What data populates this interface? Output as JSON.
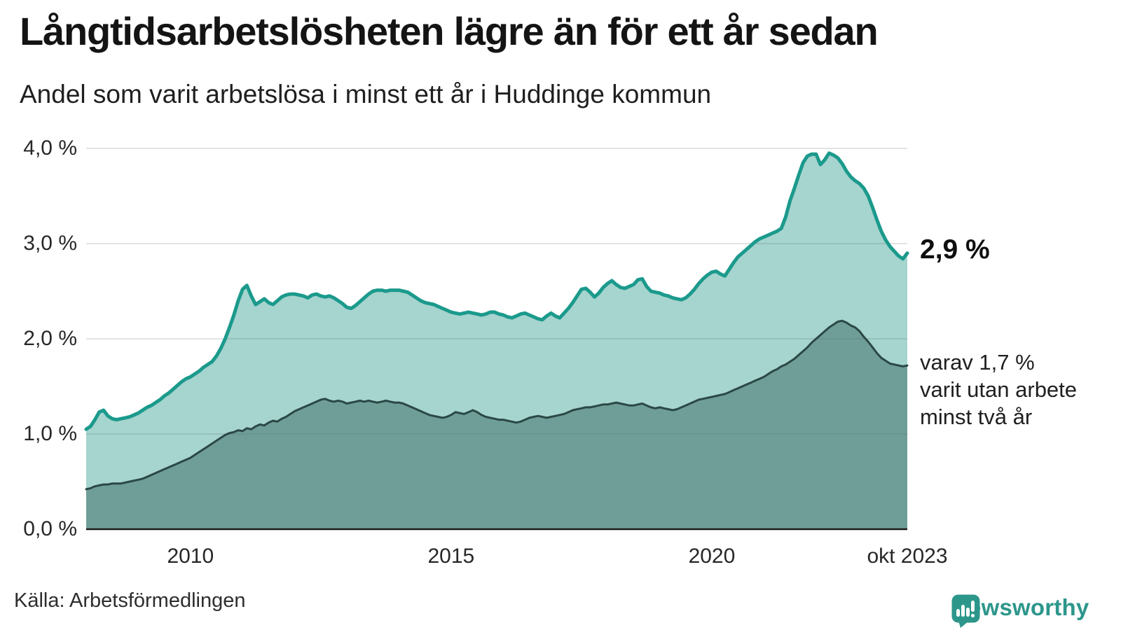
{
  "title": "Långtidsarbetslösheten lägre än för ett år sedan",
  "subtitle": "Andel som varit arbetslösa i minst ett år i Huddinge kommun",
  "source": "Källa: Arbetsförmedlingen",
  "branding": {
    "name": "Newsworthy"
  },
  "annotations": {
    "latest_total": "2,9 %",
    "secondary": [
      "varav 1,7 %",
      "varit utan arbete",
      "minst två år"
    ]
  },
  "colors": {
    "accent_teal": "#1b9a8c",
    "light_fill": "#a6d4ce",
    "dark_fill": "#6f9e98",
    "dark_line": "#2b4845",
    "axis": "#1b1b1b",
    "grid_overlay": "rgba(75,95,100,0.17)",
    "logo_teal": "#2d968b",
    "text_dark": "#141414"
  },
  "chart_data": {
    "type": "area",
    "unit": "%",
    "x_start": "2008-01",
    "x_end": "2023-10",
    "y_max": 4,
    "ylim": [
      0,
      4
    ],
    "grid": true,
    "y_ticks": [
      {
        "label": "0,0 %",
        "value": 0
      },
      {
        "label": "1,0 %",
        "value": 1
      },
      {
        "label": "2,0 %",
        "value": 2
      },
      {
        "label": "3,0 %",
        "value": 3
      },
      {
        "label": "4,0 %",
        "value": 4
      }
    ],
    "x_ticks": [
      {
        "label": "2010",
        "month_index": 24
      },
      {
        "label": "2015",
        "month_index": 84
      },
      {
        "label": "2020",
        "month_index": 144
      },
      {
        "label": "okt 2023",
        "month_index": 189
      }
    ],
    "series": [
      {
        "name": "Arbetslösa minst ett år",
        "latest_value": 2.9,
        "color": "#1b9a8c",
        "fill": "#a6d4ce",
        "values": [
          1.05,
          1.08,
          1.15,
          1.23,
          1.25,
          1.19,
          1.16,
          1.15,
          1.16,
          1.17,
          1.18,
          1.2,
          1.22,
          1.25,
          1.28,
          1.3,
          1.33,
          1.36,
          1.4,
          1.43,
          1.47,
          1.51,
          1.55,
          1.58,
          1.6,
          1.63,
          1.66,
          1.7,
          1.73,
          1.76,
          1.82,
          1.9,
          2.0,
          2.12,
          2.25,
          2.4,
          2.52,
          2.56,
          2.45,
          2.36,
          2.39,
          2.42,
          2.38,
          2.36,
          2.4,
          2.44,
          2.46,
          2.47,
          2.47,
          2.46,
          2.45,
          2.43,
          2.46,
          2.47,
          2.45,
          2.44,
          2.45,
          2.43,
          2.4,
          2.37,
          2.33,
          2.32,
          2.35,
          2.39,
          2.43,
          2.47,
          2.5,
          2.51,
          2.51,
          2.5,
          2.51,
          2.51,
          2.51,
          2.5,
          2.49,
          2.46,
          2.43,
          2.4,
          2.38,
          2.37,
          2.36,
          2.34,
          2.32,
          2.3,
          2.28,
          2.27,
          2.26,
          2.27,
          2.28,
          2.27,
          2.26,
          2.25,
          2.26,
          2.28,
          2.28,
          2.26,
          2.25,
          2.23,
          2.22,
          2.24,
          2.26,
          2.27,
          2.25,
          2.23,
          2.21,
          2.2,
          2.24,
          2.27,
          2.24,
          2.22,
          2.27,
          2.32,
          2.38,
          2.45,
          2.52,
          2.53,
          2.49,
          2.44,
          2.48,
          2.54,
          2.58,
          2.61,
          2.57,
          2.54,
          2.53,
          2.55,
          2.57,
          2.62,
          2.63,
          2.55,
          2.5,
          2.49,
          2.48,
          2.46,
          2.45,
          2.43,
          2.42,
          2.41,
          2.43,
          2.47,
          2.52,
          2.58,
          2.63,
          2.67,
          2.7,
          2.71,
          2.68,
          2.66,
          2.73,
          2.8,
          2.86,
          2.9,
          2.94,
          2.98,
          3.02,
          3.05,
          3.07,
          3.09,
          3.11,
          3.13,
          3.16,
          3.28,
          3.45,
          3.58,
          3.72,
          3.85,
          3.92,
          3.94,
          3.94,
          3.83,
          3.88,
          3.95,
          3.93,
          3.9,
          3.84,
          3.76,
          3.7,
          3.66,
          3.63,
          3.58,
          3.5,
          3.38,
          3.25,
          3.13,
          3.04,
          2.97,
          2.92,
          2.87,
          2.84,
          2.9
        ]
      },
      {
        "name": "Arbetslösa minst två år",
        "latest_value": 1.7,
        "color": "#2b4845",
        "fill": "#6f9e98",
        "values": [
          0.42,
          0.43,
          0.45,
          0.46,
          0.47,
          0.47,
          0.48,
          0.48,
          0.48,
          0.49,
          0.5,
          0.51,
          0.52,
          0.53,
          0.55,
          0.57,
          0.59,
          0.61,
          0.63,
          0.65,
          0.67,
          0.69,
          0.71,
          0.73,
          0.75,
          0.78,
          0.81,
          0.84,
          0.87,
          0.9,
          0.93,
          0.96,
          0.99,
          1.01,
          1.02,
          1.04,
          1.03,
          1.06,
          1.05,
          1.08,
          1.1,
          1.09,
          1.12,
          1.14,
          1.13,
          1.16,
          1.18,
          1.21,
          1.24,
          1.26,
          1.28,
          1.3,
          1.32,
          1.34,
          1.36,
          1.37,
          1.35,
          1.34,
          1.35,
          1.34,
          1.32,
          1.33,
          1.34,
          1.35,
          1.34,
          1.35,
          1.34,
          1.33,
          1.34,
          1.35,
          1.34,
          1.33,
          1.33,
          1.32,
          1.3,
          1.28,
          1.26,
          1.24,
          1.22,
          1.2,
          1.19,
          1.18,
          1.17,
          1.18,
          1.2,
          1.23,
          1.22,
          1.21,
          1.23,
          1.25,
          1.23,
          1.2,
          1.18,
          1.17,
          1.16,
          1.15,
          1.15,
          1.14,
          1.13,
          1.12,
          1.13,
          1.15,
          1.17,
          1.18,
          1.19,
          1.18,
          1.17,
          1.18,
          1.19,
          1.2,
          1.21,
          1.23,
          1.25,
          1.26,
          1.27,
          1.28,
          1.28,
          1.29,
          1.3,
          1.31,
          1.31,
          1.32,
          1.33,
          1.32,
          1.31,
          1.3,
          1.3,
          1.31,
          1.32,
          1.3,
          1.28,
          1.27,
          1.28,
          1.27,
          1.26,
          1.25,
          1.26,
          1.28,
          1.3,
          1.32,
          1.34,
          1.36,
          1.37,
          1.38,
          1.39,
          1.4,
          1.41,
          1.42,
          1.44,
          1.46,
          1.48,
          1.5,
          1.52,
          1.54,
          1.56,
          1.58,
          1.6,
          1.63,
          1.66,
          1.68,
          1.71,
          1.73,
          1.76,
          1.79,
          1.83,
          1.87,
          1.91,
          1.96,
          2.0,
          2.04,
          2.08,
          2.12,
          2.15,
          2.18,
          2.19,
          2.17,
          2.14,
          2.12,
          2.08,
          2.02,
          1.97,
          1.91,
          1.85,
          1.8,
          1.77,
          1.74,
          1.73,
          1.72,
          1.71,
          1.72
        ]
      }
    ]
  }
}
